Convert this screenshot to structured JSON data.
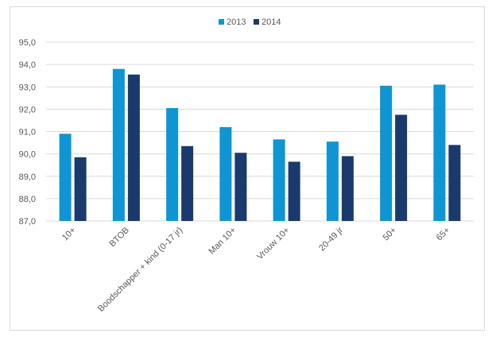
{
  "chart_data": {
    "type": "bar",
    "categories": [
      "10+",
      "BTOB",
      "Boodschapper + kind (0-17 jr)",
      "Man 10+",
      "Vrouw 10+",
      "20-49 jr",
      "50+",
      "65+"
    ],
    "series": [
      {
        "name": "2013",
        "color": "#0f95d3",
        "values": [
          90.9,
          93.8,
          92.05,
          91.2,
          90.65,
          90.55,
          93.05,
          93.1
        ]
      },
      {
        "name": "2014",
        "color": "#1a3a6e",
        "values": [
          89.85,
          93.55,
          90.35,
          90.05,
          89.65,
          89.9,
          91.75,
          90.4
        ]
      }
    ],
    "yticks": [
      "87,0",
      "88,0",
      "89,0",
      "90,0",
      "91,0",
      "92,0",
      "93,0",
      "94,0",
      "95,0"
    ],
    "ylim": [
      87,
      95
    ],
    "legend": "top",
    "grid": true
  }
}
